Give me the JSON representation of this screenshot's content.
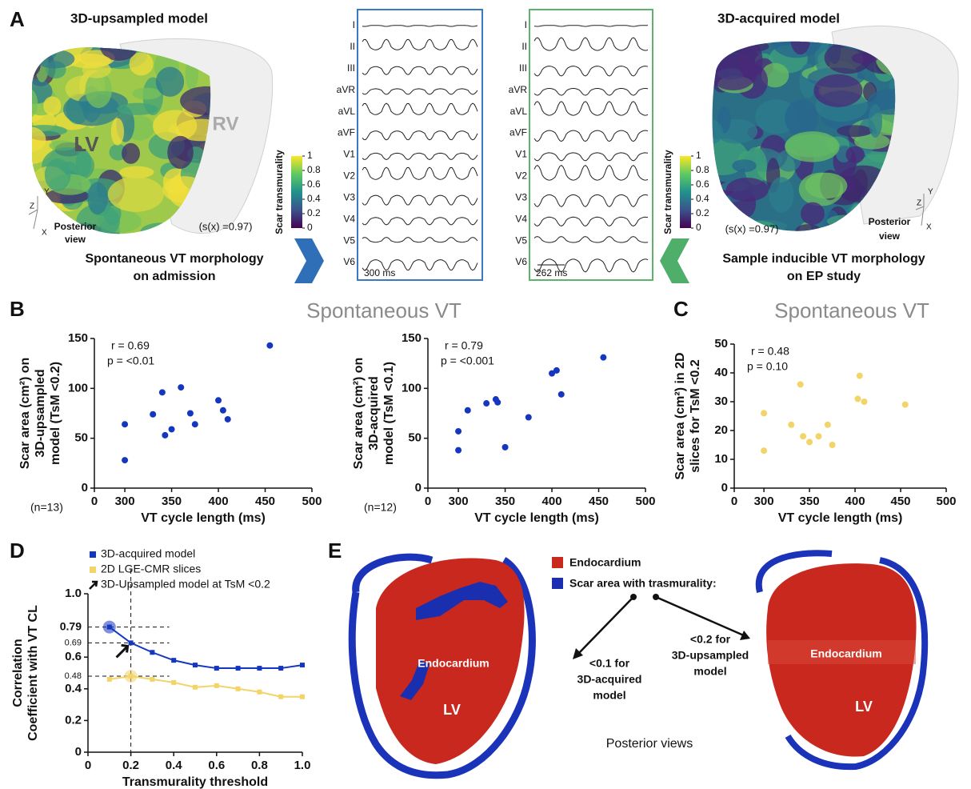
{
  "panel_labels": {
    "a": "A",
    "b": "B",
    "c": "C",
    "d": "D",
    "e": "E"
  },
  "panel_a": {
    "left": {
      "title": "3D-upsampled model",
      "lv": "LV",
      "rv": "RV",
      "axes": [
        "Y",
        "Z",
        "X"
      ],
      "view": [
        "Posterior",
        "view"
      ],
      "similarity": "(s(x) =0.97)",
      "caption": [
        "Spontaneous VT morphology",
        "on admission"
      ],
      "colorbar": {
        "label": "Scar transmurality",
        "ticks": [
          0,
          0.2,
          0.4,
          0.6,
          0.8,
          1
        ]
      },
      "ecg": {
        "leads": [
          "I",
          "II",
          "III",
          "aVR",
          "aVL",
          "aVF",
          "V1",
          "V2",
          "V3",
          "V4",
          "V5",
          "V6"
        ],
        "scale": "300 ms"
      }
    },
    "right": {
      "title": "3D-acquired model",
      "axes": [
        "Y",
        "Z",
        "X"
      ],
      "view": [
        "Posterior",
        "view"
      ],
      "similarity": "(s(x) =0.97)",
      "caption": [
        "Sample inducible VT morphology",
        "on EP study"
      ],
      "colorbar": {
        "label": "Scar transmurality",
        "ticks": [
          0,
          0.2,
          0.4,
          0.6,
          0.8,
          1
        ]
      },
      "ecg": {
        "leads": [
          "I",
          "II",
          "III",
          "aVR",
          "aVL",
          "aVF",
          "V1",
          "V2",
          "V3",
          "V4",
          "V5",
          "V6"
        ],
        "scale": "262 ms"
      }
    }
  },
  "chart_data": [
    {
      "type": "scatter",
      "title": "Spontaneous VT",
      "x_label": "VT cycle length (ms)",
      "y_label": [
        "Scar area (cm²) on",
        "3D-upsampled",
        "model (TsM <0.2)"
      ],
      "annotations": [
        "r = 0.69",
        "p = <0.01"
      ],
      "note": "(n=13)",
      "color": "#1537c0",
      "x": [
        300,
        300,
        330,
        340,
        343,
        350,
        360,
        370,
        375,
        400,
        405,
        410,
        455
      ],
      "values": [
        64,
        28,
        74,
        96,
        53,
        59,
        101,
        75,
        64,
        88,
        78,
        69,
        143
      ],
      "xlim": [
        0,
        500
      ],
      "xticks": [
        0,
        300,
        350,
        400,
        450,
        500
      ],
      "axis_break": true,
      "ylim": [
        0,
        150
      ],
      "yticks": [
        0,
        50,
        100,
        150
      ]
    },
    {
      "type": "scatter",
      "x_label": "VT cycle length (ms)",
      "y_label": [
        "Scar area (cm²) on",
        "3D-acquired",
        "model (TsM <0.1)"
      ],
      "annotations": [
        "r = 0.79",
        "p = <0.001"
      ],
      "note": "(n=12)",
      "color": "#1537c0",
      "x": [
        300,
        300,
        310,
        330,
        340,
        342,
        350,
        375,
        400,
        405,
        410,
        455
      ],
      "values": [
        57,
        38,
        78,
        85,
        89,
        86,
        41,
        71,
        115,
        118,
        94,
        131
      ],
      "xlim": [
        0,
        500
      ],
      "xticks": [
        0,
        300,
        350,
        400,
        450,
        500
      ],
      "axis_break": true,
      "ylim": [
        0,
        150
      ],
      "yticks": [
        0,
        50,
        100,
        150
      ]
    },
    {
      "type": "scatter",
      "title": "Spontaneous VT",
      "x_label": "VT cycle length (ms)",
      "y_label": [
        "Scar area (cm²) in 2D",
        "slices for TsM <0.2"
      ],
      "annotations": [
        "r = 0.48",
        "p = 0.10"
      ],
      "color": "#f2d468",
      "x": [
        300,
        300,
        330,
        340,
        343,
        350,
        360,
        370,
        375,
        403,
        405,
        410,
        455
      ],
      "values": [
        26,
        13,
        22,
        36,
        18,
        16,
        18,
        22,
        15,
        31,
        39,
        30,
        29
      ],
      "xlim": [
        0,
        500
      ],
      "xticks": [
        0,
        300,
        350,
        400,
        450,
        500
      ],
      "axis_break": true,
      "ylim": [
        0,
        50
      ],
      "yticks": [
        0,
        10,
        20,
        30,
        40,
        50
      ]
    },
    {
      "type": "line",
      "x_label": "Transmurality threshold",
      "y_label": [
        "Correlation",
        "Coefficient with VT CL"
      ],
      "x": [
        0.1,
        0.2,
        0.3,
        0.4,
        0.5,
        0.6,
        0.7,
        0.8,
        0.9,
        1.0
      ],
      "series": [
        {
          "name": "3D-acquired model",
          "color": "#1537c0",
          "values": [
            0.79,
            0.69,
            0.63,
            0.58,
            0.55,
            0.53,
            0.53,
            0.53,
            0.53,
            0.55
          ]
        },
        {
          "name": "2D LGE-CMR slices",
          "color": "#f2d468",
          "values": [
            0.46,
            0.48,
            0.46,
            0.44,
            0.41,
            0.42,
            0.4,
            0.38,
            0.35,
            0.35
          ]
        }
      ],
      "annotation": "3D-Upsampled model at TsM <0.2",
      "hlines": [
        0.79,
        0.69,
        0.48
      ],
      "vline": 0.2,
      "xlim": [
        0,
        1
      ],
      "xticks": [
        0,
        0.2,
        0.4,
        0.6,
        0.8,
        {
          "value": 1,
          "label": "1.0"
        }
      ],
      "ylim": [
        0,
        1
      ],
      "yticks": [
        0,
        0.2,
        0.4,
        0.6,
        {
          "value": 1,
          "label": "1.0"
        }
      ]
    }
  ],
  "panel_e": {
    "legend": [
      "Endocardium",
      "Scar area with trasmurality:"
    ],
    "left_label": [
      "<0.1 for",
      "3D-acquired",
      "model"
    ],
    "right_label": [
      "<0.2 for",
      "3D-upsampled",
      "model"
    ],
    "heart_labels": [
      "Endocardium",
      "LV",
      "Endocardium",
      "LV"
    ],
    "footer": "Posterior views"
  }
}
